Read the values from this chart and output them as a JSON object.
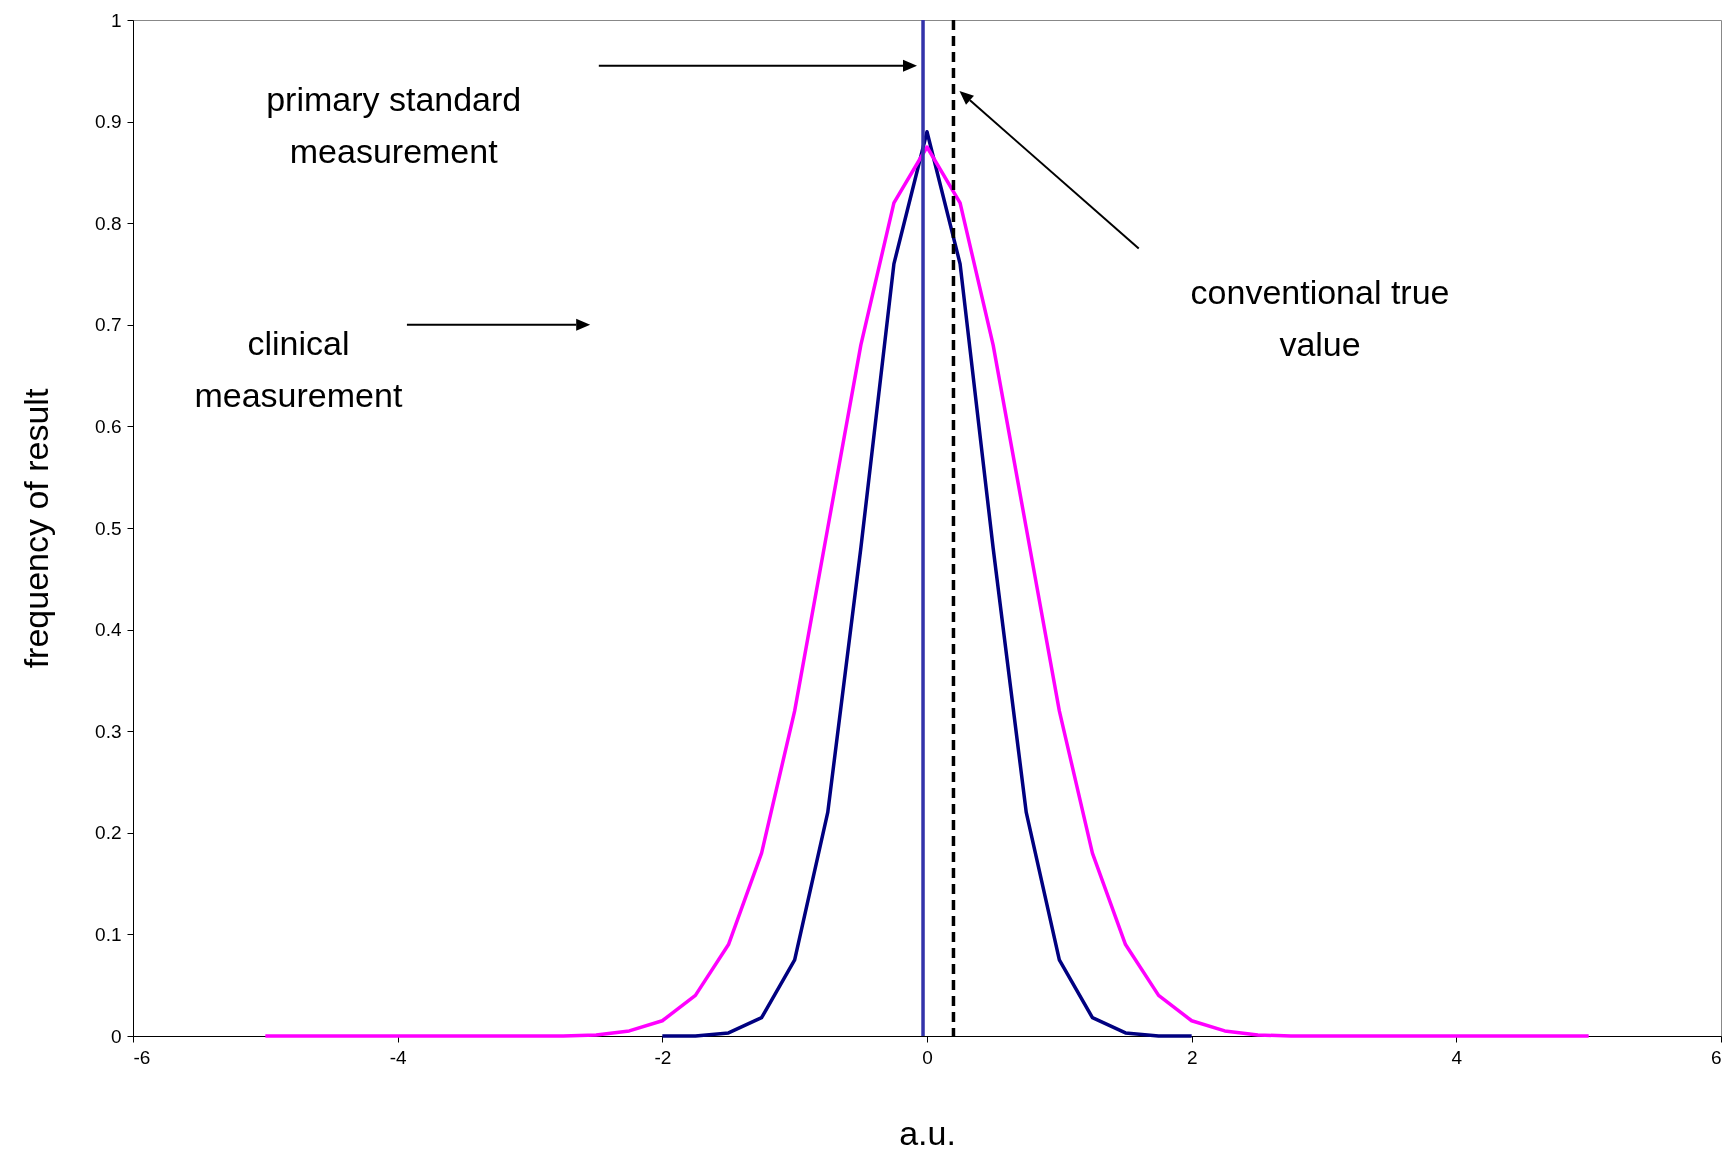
{
  "chart_data": {
    "type": "line",
    "xlabel": "a.u.",
    "ylabel": "frequency of result",
    "x": [
      -5,
      -4.75,
      -4.5,
      -4.25,
      -4,
      -3.75,
      -3.5,
      -3.25,
      -3,
      -2.75,
      -2.5,
      -2.25,
      -2,
      -1.75,
      -1.5,
      -1.25,
      -1,
      -0.75,
      -0.5,
      -0.25,
      0,
      0.25,
      0.5,
      0.75,
      1,
      1.25,
      1.5,
      1.75,
      2,
      2.25,
      2.5,
      2.75,
      3,
      3.25,
      3.5,
      3.75,
      4,
      4.25,
      4.5,
      4.75,
      5
    ],
    "series": [
      {
        "color": "#000080",
        "values": [
          null,
          null,
          null,
          null,
          null,
          null,
          null,
          null,
          null,
          null,
          null,
          null,
          0,
          0,
          0.003,
          0.018,
          0.075,
          0.22,
          0.48,
          0.76,
          0.89,
          0.76,
          0.48,
          0.22,
          0.075,
          0.018,
          0.003,
          0,
          0,
          null,
          null,
          null,
          null,
          null,
          null,
          null,
          null,
          null,
          null,
          null,
          null
        ]
      },
      {
        "color": "#ff00ff",
        "values": [
          0,
          0,
          0,
          0,
          0,
          0,
          0,
          0,
          0,
          0,
          0.001,
          0.005,
          0.015,
          0.04,
          0.09,
          0.18,
          0.32,
          0.5,
          0.68,
          0.82,
          0.875,
          0.82,
          0.68,
          0.5,
          0.32,
          0.18,
          0.09,
          0.04,
          0.015,
          0.005,
          0.001,
          0,
          0,
          0,
          0,
          0,
          0,
          0,
          0,
          0,
          0
        ]
      }
    ],
    "xlim": [
      -6,
      6
    ],
    "xticks": [
      -6,
      -4,
      -2,
      0,
      2,
      4,
      6
    ],
    "ylim": [
      0,
      1
    ],
    "yticks": [
      0,
      0.1,
      0.2,
      0.3,
      0.4,
      0.5,
      0.6,
      0.7,
      0.8,
      0.9,
      1
    ],
    "grid": false,
    "marker": "none",
    "line_style": "solid",
    "ref_lines": [
      {
        "axis": "x",
        "value": -0.03,
        "color": "#3333aa",
        "line_style": "solid"
      },
      {
        "axis": "x",
        "value": 0.2,
        "color": "#000000",
        "line_style": "dashed"
      }
    ],
    "annotations": [
      "primary standard\nmeasurement",
      "conventional true\nvalue",
      "clinical\nmeasurement"
    ]
  }
}
